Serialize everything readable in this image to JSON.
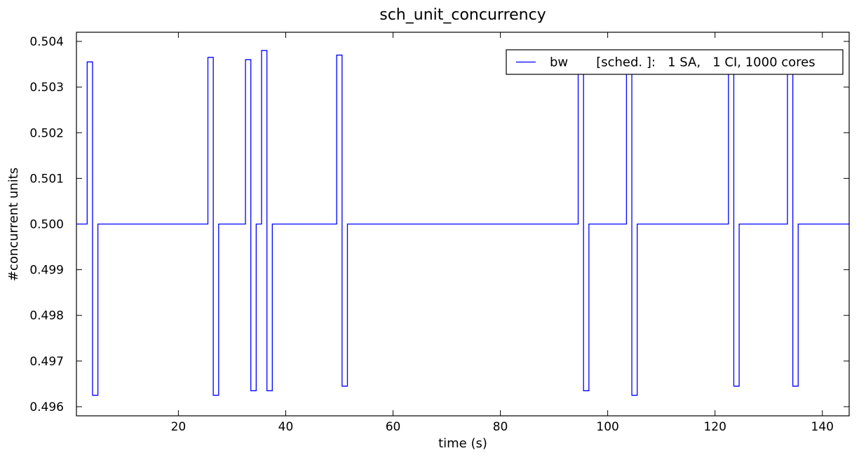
{
  "chart_data": {
    "type": "line",
    "title": "sch_unit_concurrency",
    "xlabel": "time (s)",
    "ylabel": "#concurrent units",
    "xlim": [
      1,
      145
    ],
    "ylim": [
      0.4958,
      0.5042
    ],
    "xticks": [
      20,
      40,
      60,
      80,
      100,
      120,
      140
    ],
    "xtick_labels": [
      "20",
      "40",
      "60",
      "80",
      "100",
      "120",
      "140"
    ],
    "yticks": [
      0.496,
      0.497,
      0.498,
      0.499,
      0.5,
      0.501,
      0.502,
      0.503,
      0.504
    ],
    "ytick_labels": [
      "0.496",
      "0.497",
      "0.498",
      "0.499",
      "0.500",
      "0.501",
      "0.502",
      "0.503",
      "0.504"
    ],
    "grid": false,
    "legend_position": "top-right",
    "step_style": "post",
    "series": [
      {
        "name": "bw",
        "legend_label": "bw       [sched. ]:   1 SA,   1 CI, 1000 cores",
        "color": "#0000ff",
        "x": [
          1,
          3.0,
          4.0,
          5.0,
          25.5,
          26.5,
          27.5,
          32.5,
          33.5,
          34.5,
          35.5,
          36.5,
          37.5,
          49.5,
          50.5,
          51.5,
          94.5,
          95.5,
          96.5,
          103.5,
          104.5,
          105.5,
          122.5,
          123.5,
          124.5,
          133.5,
          134.5,
          135.5,
          145
        ],
        "y": [
          0.5,
          0.50355,
          0.49625,
          0.5,
          0.50365,
          0.49625,
          0.5,
          0.5036,
          0.49635,
          0.5,
          0.5038,
          0.49635,
          0.5,
          0.5037,
          0.49645,
          0.5,
          0.5036,
          0.49635,
          0.5,
          0.5036,
          0.49625,
          0.5,
          0.5036,
          0.49645,
          0.5,
          0.5036,
          0.49645,
          0.5,
          0.5
        ]
      }
    ]
  }
}
